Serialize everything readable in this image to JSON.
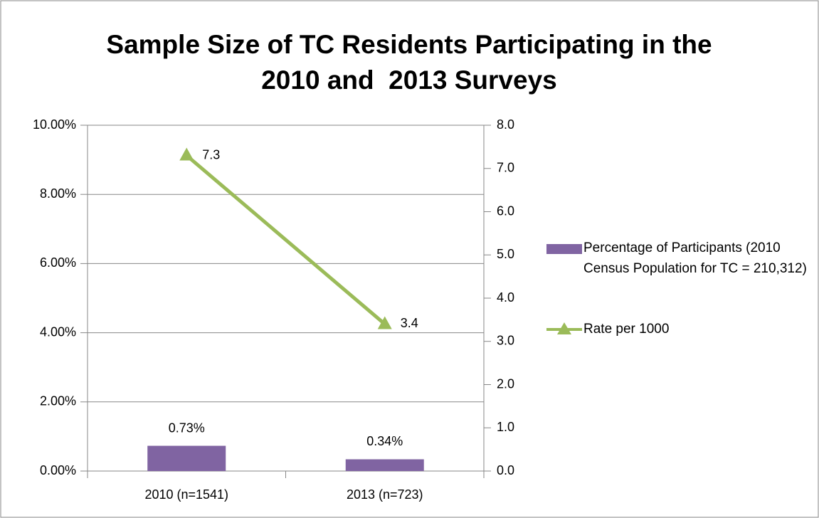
{
  "chart_data": {
    "type": "bar-line",
    "title": "Sample Size of TC Residents Participating in the 2010 and  2013 Surveys",
    "categories": [
      "2010 (n=1541)",
      "2013 (n=723)"
    ],
    "series": [
      {
        "name": "Percentage of Participants (2010 Census Population for TC = 210,312)",
        "type": "bar",
        "color": "#8064a2",
        "values": [
          0.73,
          0.34
        ],
        "value_labels": [
          "0.73%",
          "0.34%"
        ]
      },
      {
        "name": "Rate per 1000",
        "type": "line",
        "axis": "y2",
        "color": "#9bbb59",
        "values": [
          7.3,
          3.4
        ]
      }
    ],
    "ylim": [
      0,
      10
    ],
    "yticks": [
      {
        "value": 0,
        "label": "0.00%"
      },
      {
        "value": 2,
        "label": "2.00%"
      },
      {
        "value": 4,
        "label": "4.00%"
      },
      {
        "value": 6,
        "label": "6.00%"
      },
      {
        "value": 8,
        "label": "8.00%"
      },
      {
        "value": 10,
        "label": "10.00%"
      }
    ],
    "y2lim": [
      0,
      8
    ],
    "y2ticks": [
      {
        "value": 0,
        "label": "0.0"
      },
      {
        "value": 1,
        "label": "1.0"
      },
      {
        "value": 2,
        "label": "2.0"
      },
      {
        "value": 3,
        "label": "3.0"
      },
      {
        "value": 4,
        "label": "4.0"
      },
      {
        "value": 5,
        "label": "5.0"
      },
      {
        "value": 6,
        "label": "6.0"
      },
      {
        "value": 7,
        "label": "7.0"
      },
      {
        "value": 8,
        "label": "8.0"
      }
    ],
    "grid": true,
    "legend": "right"
  }
}
